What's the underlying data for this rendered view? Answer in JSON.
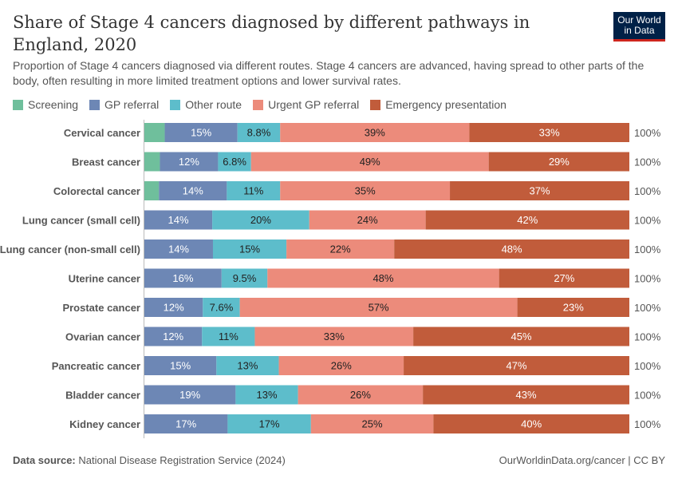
{
  "title": "Share of Stage 4 cancers diagnosed by different pathways in England, 2020",
  "subtitle": "Proportion of Stage 4 cancers diagnosed via different routes. Stage 4 cancers are advanced, having spread to other parts of the body, often resulting in more limited treatment options and lower survival rates.",
  "logo": "Our World in Data",
  "footer": {
    "source_label": "Data source:",
    "source": "National Disease Registration Service (2024)",
    "credit": "OurWorldinData.org/cancer | CC BY"
  },
  "chart_data": {
    "type": "bar",
    "orientation": "horizontal-stacked",
    "unit": "%",
    "legend_position": "top",
    "categories": [
      "Cervical cancer",
      "Breast cancer",
      "Colorectal cancer",
      "Lung cancer (small cell)",
      "Lung cancer (non-small cell)",
      "Uterine cancer",
      "Prostate cancer",
      "Ovarian cancer",
      "Pancreatic cancer",
      "Bladder cancer",
      "Kidney cancer"
    ],
    "totals": [
      "100%",
      "100%",
      "100%",
      "100%",
      "100%",
      "100%",
      "100%",
      "100%",
      "100%",
      "100%",
      "100%"
    ],
    "series": [
      {
        "name": "Screening",
        "color": "#6fbf9c",
        "label_color": "#fff",
        "values": [
          4.2,
          3.2,
          3.0,
          0,
          0,
          0,
          0,
          0,
          0,
          0,
          0
        ]
      },
      {
        "name": "GP referral",
        "color": "#6d87b5",
        "label_color": "#fff",
        "values": [
          15,
          12,
          14,
          14,
          14,
          16,
          12,
          12,
          15,
          19,
          17
        ]
      },
      {
        "name": "Other route",
        "color": "#5dbdcb",
        "label_color": "#222",
        "values": [
          8.8,
          6.8,
          11,
          20,
          15,
          9.5,
          7.6,
          11,
          13,
          13,
          17
        ]
      },
      {
        "name": "Urgent GP referral",
        "color": "#ec8b7b",
        "label_color": "#222",
        "values": [
          39,
          49,
          35,
          24,
          22,
          48,
          57,
          33,
          26,
          26,
          25
        ]
      },
      {
        "name": "Emergency presentation",
        "color": "#c15c3b",
        "label_color": "#fff",
        "values": [
          33,
          29,
          37,
          42,
          48,
          27,
          23,
          45,
          47,
          43,
          40
        ]
      }
    ],
    "xlim": [
      0,
      100
    ]
  }
}
